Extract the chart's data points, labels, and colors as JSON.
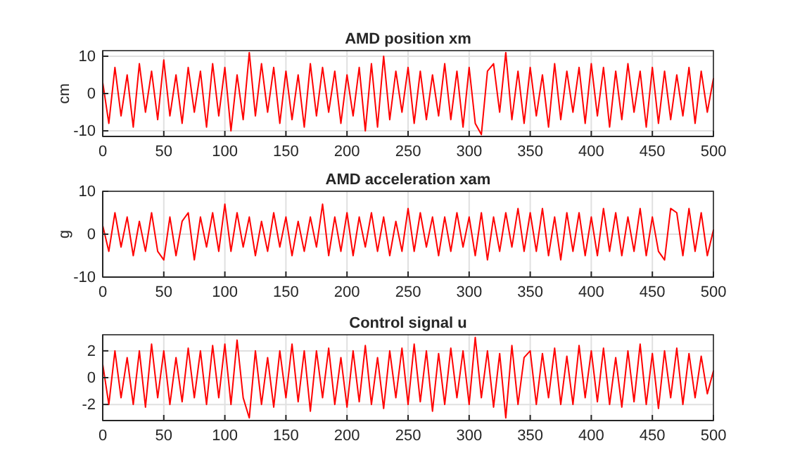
{
  "chart_data": [
    {
      "type": "line",
      "title": "AMD position xm",
      "ylabel": "cm",
      "color": "#ff0000",
      "grid": true,
      "xlim": [
        0,
        500
      ],
      "xticks": [
        0,
        50,
        100,
        150,
        200,
        250,
        300,
        350,
        400,
        450,
        500
      ],
      "ylim": [
        -11.5,
        11.5
      ],
      "yticks": [
        -10,
        0,
        10
      ],
      "x": [
        0,
        5,
        10,
        15,
        20,
        25,
        30,
        35,
        40,
        45,
        50,
        55,
        60,
        65,
        70,
        75,
        80,
        85,
        90,
        95,
        100,
        105,
        110,
        115,
        120,
        125,
        130,
        135,
        140,
        145,
        150,
        155,
        160,
        165,
        170,
        175,
        180,
        185,
        190,
        195,
        200,
        205,
        210,
        215,
        220,
        225,
        230,
        235,
        240,
        245,
        250,
        255,
        260,
        265,
        270,
        275,
        280,
        285,
        290,
        295,
        300,
        305,
        310,
        315,
        320,
        325,
        330,
        335,
        340,
        345,
        350,
        355,
        360,
        365,
        370,
        375,
        380,
        385,
        390,
        395,
        400,
        405,
        410,
        415,
        420,
        425,
        430,
        435,
        440,
        445,
        450,
        455,
        460,
        465,
        470,
        475,
        480,
        485,
        490,
        495,
        500
      ],
      "values": [
        3,
        -8,
        7,
        -6,
        5,
        -9,
        8,
        -5,
        6,
        -7,
        9,
        -6,
        5,
        -8,
        7,
        -5,
        6,
        -9,
        8,
        -6,
        7,
        -10,
        5,
        -7,
        11,
        -6,
        8,
        -5,
        7,
        -8,
        6,
        -7,
        5,
        -9,
        8,
        -6,
        7,
        -5,
        6,
        -8,
        5,
        -6,
        7,
        -10,
        8,
        -9,
        10,
        -7,
        6,
        -5,
        7,
        -8,
        6,
        -7,
        5,
        -6,
        8,
        -7,
        6,
        -9,
        7,
        -8,
        -11,
        6,
        8,
        -5,
        11,
        -7,
        6,
        -8,
        7,
        -6,
        5,
        -9,
        8,
        -7,
        6,
        -5,
        7,
        -8,
        8,
        -6,
        7,
        -9,
        6,
        -7,
        8,
        -5,
        6,
        -9,
        7,
        -8,
        6,
        -7,
        5,
        -6,
        7,
        -8,
        6,
        -5,
        4
      ]
    },
    {
      "type": "line",
      "title": "AMD acceleration xam",
      "ylabel": "g",
      "color": "#ff0000",
      "grid": true,
      "xlim": [
        0,
        500
      ],
      "xticks": [
        0,
        50,
        100,
        150,
        200,
        250,
        300,
        350,
        400,
        450,
        500
      ],
      "ylim": [
        -10,
        10
      ],
      "yticks": [
        -10,
        0,
        10
      ],
      "x": [
        0,
        5,
        10,
        15,
        20,
        25,
        30,
        35,
        40,
        45,
        50,
        55,
        60,
        65,
        70,
        75,
        80,
        85,
        90,
        95,
        100,
        105,
        110,
        115,
        120,
        125,
        130,
        135,
        140,
        145,
        150,
        155,
        160,
        165,
        170,
        175,
        180,
        185,
        190,
        195,
        200,
        205,
        210,
        215,
        220,
        225,
        230,
        235,
        240,
        245,
        250,
        255,
        260,
        265,
        270,
        275,
        280,
        285,
        290,
        295,
        300,
        305,
        310,
        315,
        320,
        325,
        330,
        335,
        340,
        345,
        350,
        355,
        360,
        365,
        370,
        375,
        380,
        385,
        390,
        395,
        400,
        405,
        410,
        415,
        420,
        425,
        430,
        435,
        440,
        445,
        450,
        455,
        460,
        465,
        470,
        475,
        480,
        485,
        490,
        495,
        500
      ],
      "values": [
        2,
        -4,
        5,
        -3,
        4,
        -5,
        3,
        -4,
        5,
        -4,
        -6,
        4,
        -5,
        3,
        5,
        -6,
        4,
        -3,
        5,
        -4,
        7,
        -4,
        5,
        -3,
        4,
        -5,
        3,
        -4,
        5,
        -3,
        4,
        -5,
        3,
        -4,
        4,
        -3,
        7,
        -5,
        4,
        -4,
        5,
        -5,
        4,
        -3,
        5,
        -4,
        4,
        -5,
        3,
        -4,
        6,
        -4,
        5,
        -3,
        4,
        -5,
        4,
        -4,
        5,
        -3,
        4,
        -5,
        5,
        -6,
        4,
        -4,
        5,
        -3,
        6,
        -4,
        5,
        -4,
        6,
        -5,
        4,
        -6,
        5,
        -4,
        5,
        -5,
        4,
        -5,
        6,
        -4,
        5,
        -5,
        4,
        -4,
        6,
        -5,
        4,
        -4,
        -6,
        6,
        5,
        -5,
        6,
        -4,
        5,
        -5,
        1
      ]
    },
    {
      "type": "line",
      "title": "Control signal u",
      "color": "#ff0000",
      "grid": true,
      "xlim": [
        0,
        500
      ],
      "xticks": [
        0,
        50,
        100,
        150,
        200,
        250,
        300,
        350,
        400,
        450,
        500
      ],
      "ylim": [
        -3.2,
        3.2
      ],
      "yticks": [
        -2,
        0,
        2
      ],
      "x": [
        0,
        5,
        10,
        15,
        20,
        25,
        30,
        35,
        40,
        45,
        50,
        55,
        60,
        65,
        70,
        75,
        80,
        85,
        90,
        95,
        100,
        105,
        110,
        115,
        120,
        125,
        130,
        135,
        140,
        145,
        150,
        155,
        160,
        165,
        170,
        175,
        180,
        185,
        190,
        195,
        200,
        205,
        210,
        215,
        220,
        225,
        230,
        235,
        240,
        245,
        250,
        255,
        260,
        265,
        270,
        275,
        280,
        285,
        290,
        295,
        300,
        305,
        310,
        315,
        320,
        325,
        330,
        335,
        340,
        345,
        350,
        355,
        360,
        365,
        370,
        375,
        380,
        385,
        390,
        395,
        400,
        405,
        410,
        415,
        420,
        425,
        430,
        435,
        440,
        445,
        450,
        455,
        460,
        465,
        470,
        475,
        480,
        485,
        490,
        495,
        500
      ],
      "values": [
        1,
        -2,
        2,
        -1.5,
        1.5,
        -2,
        2,
        -2.2,
        2.5,
        -1.5,
        2,
        -2,
        1.5,
        -1.8,
        2.2,
        -1.5,
        2,
        -2,
        2.4,
        -1.5,
        2.5,
        -2,
        2.8,
        -1.5,
        -3,
        2,
        -2,
        1.5,
        -2.2,
        2,
        -1.5,
        2.5,
        -1.8,
        2,
        -2.5,
        2,
        -1.5,
        2.2,
        -2,
        1.5,
        -2.2,
        2,
        -1.8,
        2.4,
        -2,
        1.5,
        -2.3,
        2,
        -1.5,
        2.2,
        -2,
        2.5,
        -1.8,
        2,
        -2.5,
        1.8,
        -2,
        2.2,
        -1.5,
        2,
        -2,
        3,
        -1.5,
        2,
        -2.2,
        1.8,
        -3,
        2.4,
        -2,
        1.5,
        2,
        -2,
        1.8,
        -1.5,
        2.2,
        -2,
        1.6,
        -2,
        2.4,
        -1.5,
        2,
        -1.8,
        2.2,
        -2,
        1.5,
        -2.2,
        2,
        -1.8,
        2.5,
        -2,
        1.8,
        -2.3,
        2,
        -1.5,
        2.2,
        -2,
        1.8,
        -1.5,
        1.6,
        -1.2,
        0.5
      ]
    }
  ]
}
